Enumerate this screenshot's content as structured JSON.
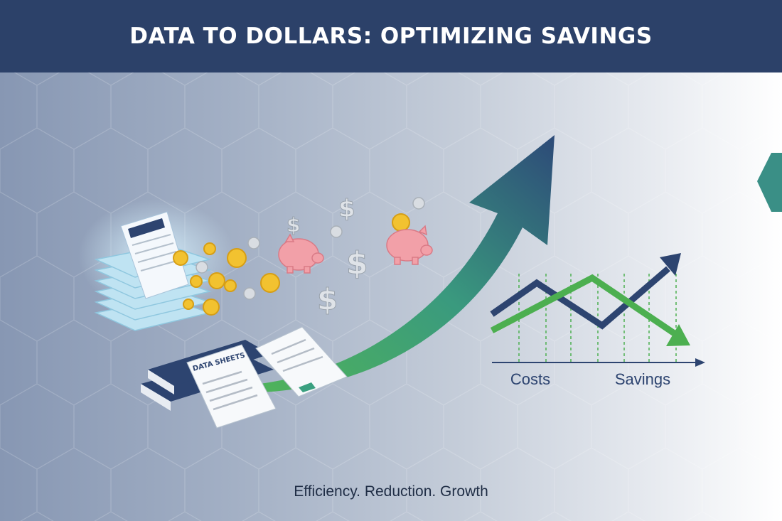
{
  "header": {
    "title": "DATA TO DOLLARS: OPTIMIZING SAVINGS"
  },
  "illustration": {
    "documents_label": "DATA SHEETS",
    "chart_labels": {
      "left": "Costs",
      "right": "Savings"
    },
    "icons": [
      "document-stack-icon",
      "gold-coin-icon",
      "silver-coin-icon",
      "dollar-sign-icon",
      "piggy-bank-icon",
      "book-icon",
      "growth-arrow-icon",
      "line-chart-icon"
    ]
  },
  "colors": {
    "header": "#2c4169",
    "navy": "#2d4470",
    "green": "#4caf50",
    "teal": "#3a8f86",
    "coin": "#f2c230",
    "piggy": "#f2a0a8"
  },
  "footer": {
    "tagline": "Efficiency. Reduction. Growth"
  }
}
